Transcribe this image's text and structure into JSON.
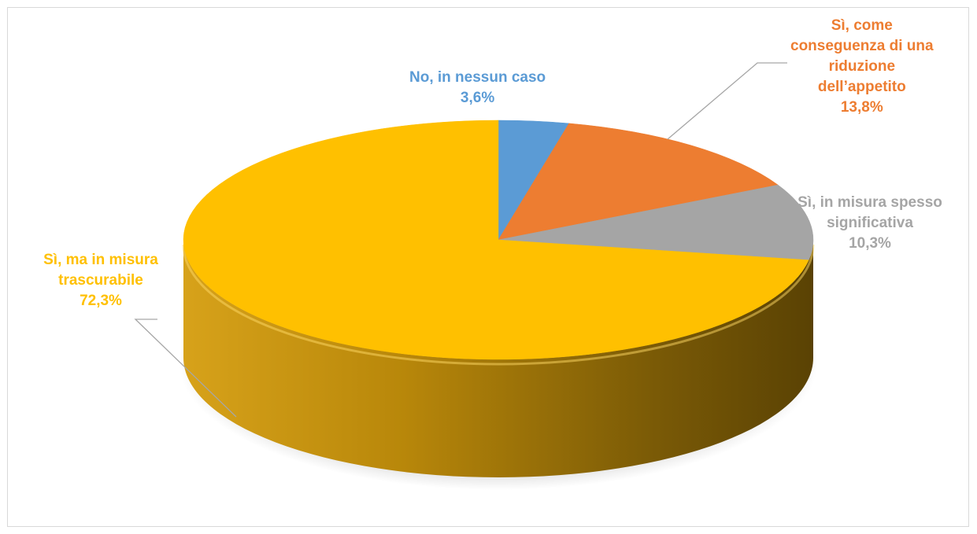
{
  "chart_data": {
    "type": "pie",
    "style": "3d",
    "title": "",
    "data_labels": "category and percent",
    "slices": [
      {
        "label": "No, in nessun caso",
        "value": 3.6,
        "display": "3,6%",
        "color": "#5b9bd5"
      },
      {
        "label": "Sì, come conseguenza di una riduzione dell’appetito",
        "value": 13.8,
        "display": "13,8%",
        "color": "#ed7d31"
      },
      {
        "label": "Sì, in misura spesso significativa",
        "value": 10.3,
        "display": "10,3%",
        "color": "#a5a5a5"
      },
      {
        "label": "Sì, ma in misura trascurabile",
        "value": 72.3,
        "display": "72,3%",
        "color": "#ffc000"
      }
    ]
  },
  "labels": {
    "no": {
      "lines": [
        "No, in nessun caso"
      ],
      "pct": "3,6%"
    },
    "come": {
      "lines": [
        "Sì, come",
        "conseguenza di una",
        "riduzione",
        "dell’appetito"
      ],
      "pct": "13,8%"
    },
    "spesso": {
      "lines": [
        "Sì, in misura spesso",
        "significativa"
      ],
      "pct": "10,3%"
    },
    "trascurabile": {
      "lines": [
        "Sì, ma in misura",
        "trascurabile"
      ],
      "pct": "72,3%"
    }
  }
}
